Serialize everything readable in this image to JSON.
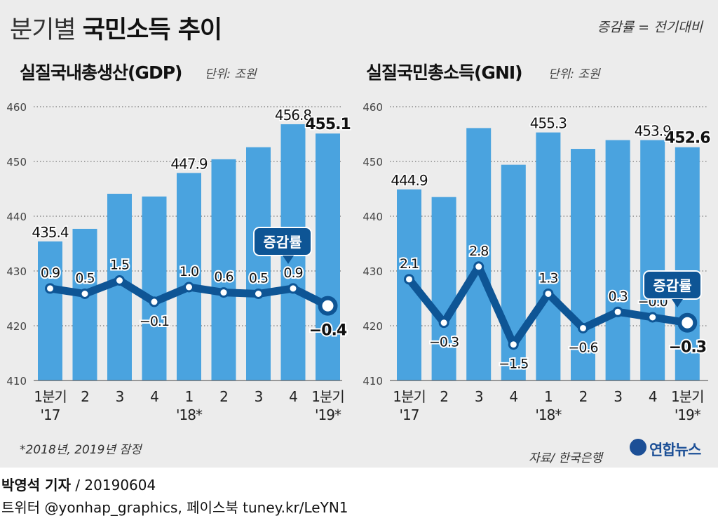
{
  "header": {
    "title_light": "분기별",
    "title_bold": "국민소득 추이",
    "legend_note": "증감률 = 전기대비"
  },
  "colors": {
    "bar": "#4aa3df",
    "line": "#0e5595",
    "callout": "#0e5595",
    "grid": "#777777"
  },
  "chart_data": [
    {
      "type": "bar",
      "title": "실질국내총생산(GDP)",
      "unit": "단위: 조원",
      "categories": [
        "1분기\n'17",
        "2",
        "3",
        "4",
        "1\n'18*",
        "2",
        "3",
        "4",
        "1분기\n'19*"
      ],
      "ylim": [
        410,
        460
      ],
      "yticks": [
        410,
        420,
        430,
        440,
        450,
        460
      ],
      "grid": true,
      "series": [
        {
          "type": "bar",
          "values": [
            435.4,
            437.7,
            444.1,
            443.6,
            447.9,
            450.4,
            452.6,
            456.8,
            455.1
          ]
        },
        {
          "type": "line",
          "name": "증감률",
          "values": [
            0.9,
            0.5,
            1.5,
            -0.1,
            1.0,
            0.6,
            0.5,
            0.9,
            -0.4
          ]
        }
      ],
      "bar_labels": [
        "435.4",
        "",
        "",
        "",
        "447.9",
        "",
        "",
        "456.8",
        "455.1"
      ],
      "line_labels": [
        "0.9",
        "0.5",
        "1.5",
        "−0.1",
        "1.0",
        "0.6",
        "0.5",
        "0.9",
        "−0.4"
      ],
      "callout": "증감률"
    },
    {
      "type": "bar",
      "title": "실질국민총소득(GNI)",
      "unit": "단위: 조원",
      "categories": [
        "1분기\n'17",
        "2",
        "3",
        "4",
        "1\n'18*",
        "2",
        "3",
        "4",
        "1분기\n'19*"
      ],
      "ylim": [
        410,
        460
      ],
      "yticks": [
        410,
        420,
        430,
        440,
        450,
        460
      ],
      "grid": true,
      "series": [
        {
          "type": "bar",
          "values": [
            444.9,
            443.5,
            456.1,
            449.4,
            455.3,
            452.3,
            453.9,
            453.9,
            452.6
          ]
        },
        {
          "type": "line",
          "name": "증감률",
          "values": [
            2.1,
            -0.3,
            2.8,
            -1.5,
            1.3,
            -0.6,
            0.3,
            -0.0,
            -0.3
          ]
        }
      ],
      "bar_labels": [
        "444.9",
        "",
        "",
        "",
        "455.3",
        "",
        "",
        "453.9",
        "452.6"
      ],
      "line_labels": [
        "2.1",
        "−0.3",
        "2.8",
        "−1.5",
        "1.3",
        "−0.6",
        "0.3",
        "−0.0",
        "−0.3"
      ],
      "callout": "증감률"
    }
  ],
  "footer": {
    "footnote": "*2018년, 2019년 잠정",
    "source": "자료/ 한국은행",
    "logo": "연합뉴스",
    "byline_name": "박영석 기자",
    "byline_date": "/  20190604",
    "social": "트위터 @yonhap_graphics, 페이스북 tuney.kr/LeYN1"
  }
}
